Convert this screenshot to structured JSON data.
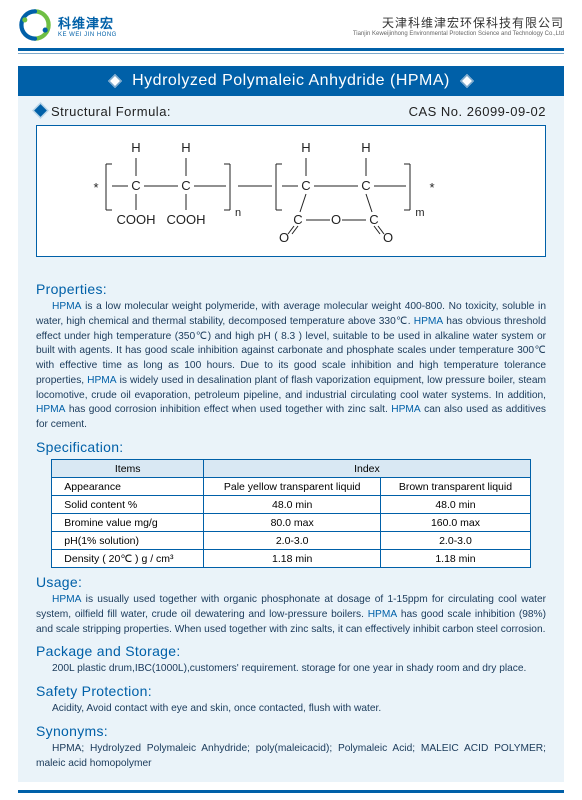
{
  "header": {
    "company_cn": "科维津宏",
    "company_pinyin": "KE WEI JIN HONG",
    "right_cn": "天津科维津宏环保科技有限公司",
    "right_en": "Tianjin Keweijinhong Environmental Protection Science and Technology Co.,Ltd"
  },
  "title": "Hydrolyzed Polymaleic Anhydride (HPMA)",
  "structural_label": "Structural Formula:",
  "cas_label": "CAS No. 26099-09-02",
  "sections": {
    "properties": {
      "heading": "Properties:",
      "pre1": "HPMA",
      "t1": " is a low molecular weight polymeride, with average molecular weight 400-800. No toxicity, soluble in water, high chemical and thermal stability, decomposed temperature above 330℃. ",
      "kw2": "HPMA",
      "t2": " has obvious threshold effect under high temperature (350℃) and high pH ( 8.3 ) level, suitable to be used in alkaline water system or built with agents. It has good scale inhibition against carbonate and phosphate scales under temperature 300℃ with effective time as long as 100 hours. Due to its good scale inhibition and high temperature tolerance properties, ",
      "kw3": "HPMA",
      "t3": " is widely used in desalination plant of flash vaporization equipment, low pressure boiler, steam locomotive, crude oil evaporation, petroleum pipeline, and industrial circulating cool water systems. In addition, ",
      "kw4": "HPMA",
      "t4": " has good corrosion inhibition effect when used together with zinc salt. ",
      "kw5": "HPMA",
      "t5": " can also used as additives for cement."
    },
    "spec": {
      "heading": "Specification:",
      "col_items": "Items",
      "col_index": "Index",
      "rows": [
        {
          "item": "Appearance",
          "a": "Pale yellow transparent liquid",
          "b": "Brown transparent liquid"
        },
        {
          "item": "Solid content %",
          "a": "48.0 min",
          "b": "48.0 min"
        },
        {
          "item": "Bromine value mg/g",
          "a": "80.0 max",
          "b": "160.0 max"
        },
        {
          "item": "pH(1%  solution)",
          "a": "2.0-3.0",
          "b": "2.0-3.0"
        },
        {
          "item": "Density ( 20℃ )  g / cm³",
          "a": "1.18 min",
          "b": "1.18 min"
        }
      ]
    },
    "usage": {
      "heading": "Usage:",
      "pre1": "HPMA",
      "t1": " is usually used together with organic phosphonate at dosage of 1-15ppm for circulating cool water system, oilfield fill water, crude oil dewatering and low-pressure boilers. ",
      "kw2": "HPMA",
      "t2": " has good scale inhibition (98%) and scale stripping properties. When used together with zinc salts, it can effectively inhibit carbon steel corrosion."
    },
    "package": {
      "heading": "Package and Storage:",
      "text": "200L plastic drum,IBC(1000L),customers' requirement. storage for one year in shady room and dry place."
    },
    "safety": {
      "heading": "Safety Protection:",
      "text": "Acidity, Avoid contact with eye and skin, once contacted, flush with water."
    },
    "synonyms": {
      "heading": "Synonyms:",
      "text": "HPMA; Hydrolyzed Polymaleic Anhydride; poly(maleicacid); Polymaleic Acid; MALEIC ACID POLYMER; maleic acid homopolymer"
    }
  },
  "colors": {
    "brand": "#0060a8",
    "panel_bg": "#eaf3f9",
    "text_body": "#1a3a5a"
  }
}
